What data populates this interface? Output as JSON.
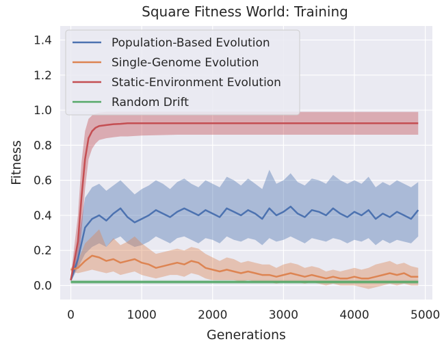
{
  "chart_data": {
    "type": "line",
    "title": "Square Fitness World: Training",
    "xlabel": "Generations",
    "ylabel": "Fitness",
    "xlim": [
      -150,
      5100
    ],
    "ylim": [
      -0.08,
      1.48
    ],
    "xticks": [
      0,
      1000,
      2000,
      3000,
      4000,
      5000
    ],
    "xtick_labels": [
      "0",
      "1000",
      "2000",
      "3000",
      "4000",
      "5000"
    ],
    "yticks": [
      0.0,
      0.2,
      0.4,
      0.6,
      0.8,
      1.0,
      1.2,
      1.4
    ],
    "ytick_labels": [
      "0.0",
      "0.2",
      "0.4",
      "0.6",
      "0.8",
      "1.0",
      "1.2",
      "1.4"
    ],
    "grid": true,
    "background": "#eaeaf2",
    "legend_position": "top-left",
    "series": [
      {
        "name": "Population-Based Evolution",
        "color": "#4c72b0",
        "x": [
          0,
          100,
          200,
          300,
          400,
          500,
          600,
          700,
          800,
          900,
          1000,
          1100,
          1200,
          1300,
          1400,
          1500,
          1600,
          1700,
          1800,
          1900,
          2000,
          2100,
          2200,
          2300,
          2400,
          2500,
          2600,
          2700,
          2800,
          2900,
          3000,
          3100,
          3200,
          3300,
          3400,
          3500,
          3600,
          3700,
          3800,
          3900,
          4000,
          4100,
          4200,
          4300,
          4400,
          4500,
          4600,
          4700,
          4800,
          4900
        ],
        "y": [
          0.03,
          0.15,
          0.33,
          0.38,
          0.4,
          0.37,
          0.41,
          0.44,
          0.39,
          0.36,
          0.38,
          0.4,
          0.43,
          0.41,
          0.39,
          0.42,
          0.44,
          0.42,
          0.4,
          0.43,
          0.41,
          0.39,
          0.44,
          0.42,
          0.4,
          0.43,
          0.41,
          0.38,
          0.44,
          0.4,
          0.42,
          0.45,
          0.41,
          0.39,
          0.43,
          0.42,
          0.4,
          0.44,
          0.41,
          0.39,
          0.42,
          0.4,
          0.43,
          0.38,
          0.41,
          0.39,
          0.42,
          0.4,
          0.38,
          0.43
        ],
        "lower": [
          0.02,
          0.1,
          0.18,
          0.22,
          0.24,
          0.22,
          0.26,
          0.28,
          0.24,
          0.22,
          0.23,
          0.25,
          0.28,
          0.26,
          0.24,
          0.27,
          0.28,
          0.26,
          0.24,
          0.27,
          0.26,
          0.24,
          0.28,
          0.26,
          0.25,
          0.27,
          0.26,
          0.23,
          0.27,
          0.25,
          0.26,
          0.28,
          0.26,
          0.24,
          0.27,
          0.26,
          0.25,
          0.27,
          0.26,
          0.24,
          0.26,
          0.25,
          0.27,
          0.23,
          0.26,
          0.24,
          0.26,
          0.25,
          0.24,
          0.28
        ],
        "upper": [
          0.05,
          0.25,
          0.5,
          0.56,
          0.58,
          0.54,
          0.57,
          0.6,
          0.56,
          0.52,
          0.55,
          0.57,
          0.6,
          0.58,
          0.55,
          0.59,
          0.61,
          0.58,
          0.56,
          0.6,
          0.58,
          0.56,
          0.62,
          0.6,
          0.57,
          0.61,
          0.58,
          0.55,
          0.66,
          0.58,
          0.6,
          0.64,
          0.59,
          0.57,
          0.61,
          0.6,
          0.58,
          0.63,
          0.6,
          0.58,
          0.6,
          0.58,
          0.62,
          0.56,
          0.59,
          0.57,
          0.6,
          0.58,
          0.56,
          0.59
        ]
      },
      {
        "name": "Single-Genome Evolution",
        "color": "#dd8452",
        "x": [
          0,
          100,
          200,
          300,
          400,
          500,
          600,
          700,
          800,
          900,
          1000,
          1100,
          1200,
          1300,
          1400,
          1500,
          1600,
          1700,
          1800,
          1900,
          2000,
          2100,
          2200,
          2300,
          2400,
          2500,
          2600,
          2700,
          2800,
          2900,
          3000,
          3100,
          3200,
          3300,
          3400,
          3500,
          3600,
          3700,
          3800,
          3900,
          4000,
          4100,
          4200,
          4300,
          4400,
          4500,
          4600,
          4700,
          4800,
          4900
        ],
        "y": [
          0.09,
          0.1,
          0.14,
          0.17,
          0.16,
          0.14,
          0.15,
          0.13,
          0.14,
          0.15,
          0.13,
          0.12,
          0.1,
          0.11,
          0.12,
          0.13,
          0.12,
          0.14,
          0.13,
          0.1,
          0.09,
          0.08,
          0.09,
          0.08,
          0.07,
          0.08,
          0.07,
          0.06,
          0.06,
          0.05,
          0.06,
          0.07,
          0.06,
          0.05,
          0.06,
          0.05,
          0.04,
          0.05,
          0.04,
          0.04,
          0.05,
          0.04,
          0.04,
          0.05,
          0.06,
          0.07,
          0.06,
          0.07,
          0.05,
          0.05
        ],
        "lower": [
          0.08,
          0.07,
          0.08,
          0.09,
          0.08,
          0.07,
          0.08,
          0.06,
          0.07,
          0.08,
          0.06,
          0.05,
          0.04,
          0.05,
          0.06,
          0.06,
          0.05,
          0.07,
          0.06,
          0.04,
          0.03,
          0.03,
          0.03,
          0.03,
          0.02,
          0.03,
          0.02,
          0.02,
          0.02,
          0.01,
          0.02,
          0.02,
          0.02,
          0.01,
          0.02,
          0.01,
          0.0,
          0.01,
          0.0,
          0.0,
          0.0,
          -0.01,
          -0.02,
          -0.01,
          0.0,
          0.01,
          0.0,
          0.01,
          0.0,
          0.0
        ],
        "upper": [
          0.1,
          0.14,
          0.24,
          0.28,
          0.32,
          0.22,
          0.27,
          0.23,
          0.25,
          0.28,
          0.24,
          0.21,
          0.18,
          0.19,
          0.2,
          0.21,
          0.2,
          0.22,
          0.21,
          0.18,
          0.16,
          0.14,
          0.16,
          0.15,
          0.13,
          0.14,
          0.13,
          0.12,
          0.12,
          0.1,
          0.12,
          0.13,
          0.12,
          0.1,
          0.11,
          0.1,
          0.08,
          0.09,
          0.08,
          0.09,
          0.1,
          0.09,
          0.1,
          0.12,
          0.13,
          0.14,
          0.12,
          0.13,
          0.11,
          0.1
        ]
      },
      {
        "name": "Static-Environment Evolution",
        "color": "#c44e52",
        "x": [
          0,
          100,
          150,
          200,
          250,
          300,
          350,
          400,
          500,
          600,
          700,
          800,
          1000,
          1500,
          2000,
          2500,
          3000,
          3500,
          4000,
          4500,
          4900
        ],
        "y": [
          0.03,
          0.25,
          0.5,
          0.72,
          0.84,
          0.88,
          0.9,
          0.91,
          0.915,
          0.92,
          0.922,
          0.925,
          0.925,
          0.925,
          0.925,
          0.925,
          0.925,
          0.925,
          0.925,
          0.925,
          0.925
        ],
        "lower": [
          0.02,
          0.12,
          0.3,
          0.55,
          0.72,
          0.78,
          0.81,
          0.83,
          0.84,
          0.845,
          0.85,
          0.85,
          0.855,
          0.86,
          0.86,
          0.86,
          0.86,
          0.86,
          0.86,
          0.86,
          0.86
        ],
        "upper": [
          0.05,
          0.4,
          0.7,
          0.88,
          0.95,
          0.97,
          0.98,
          0.985,
          0.99,
          0.99,
          0.99,
          0.99,
          0.99,
          0.99,
          0.99,
          0.99,
          0.99,
          0.99,
          0.99,
          0.99,
          0.99
        ]
      },
      {
        "name": "Random Drift",
        "color": "#55a868",
        "x": [
          0,
          500,
          1000,
          1500,
          2000,
          2500,
          3000,
          3500,
          4000,
          4500,
          4900
        ],
        "y": [
          0.02,
          0.02,
          0.02,
          0.02,
          0.02,
          0.02,
          0.02,
          0.02,
          0.02,
          0.02,
          0.02
        ],
        "lower": [
          0.01,
          0.01,
          0.01,
          0.01,
          0.01,
          0.01,
          0.01,
          0.01,
          0.01,
          0.01,
          0.01
        ],
        "upper": [
          0.03,
          0.03,
          0.03,
          0.03,
          0.03,
          0.03,
          0.03,
          0.03,
          0.03,
          0.03,
          0.03
        ]
      }
    ]
  }
}
